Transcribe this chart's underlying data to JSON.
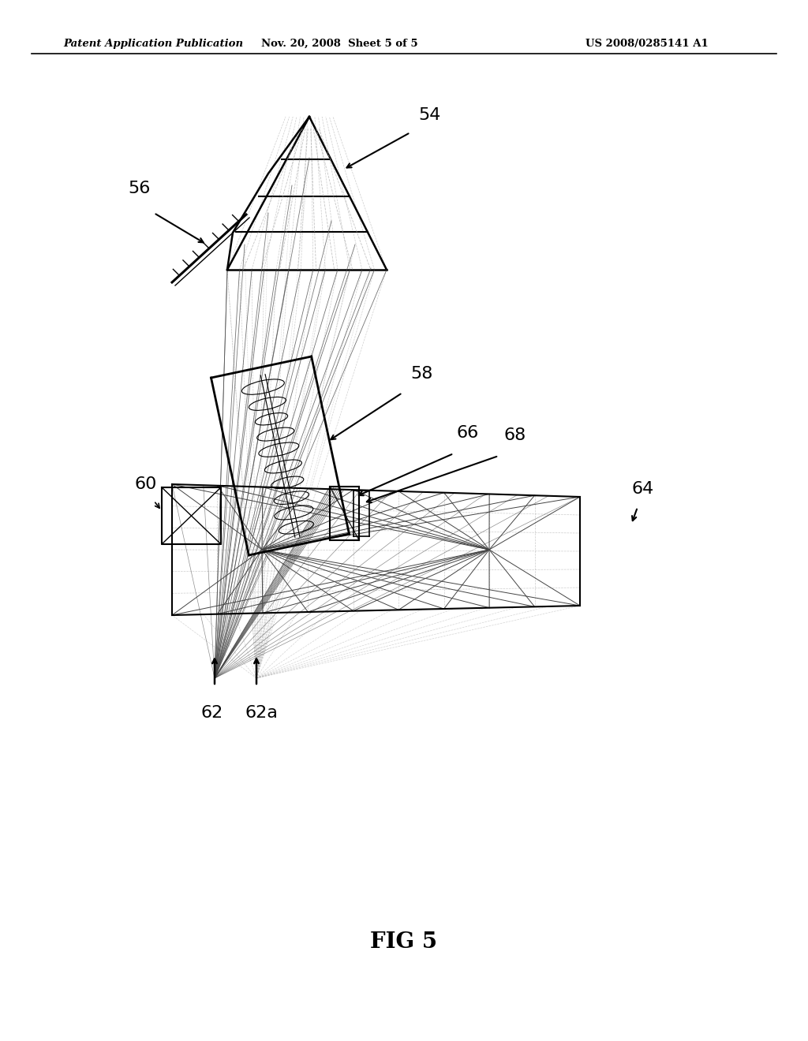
{
  "background_color": "#ffffff",
  "header_left": "Patent Application Publication",
  "header_center": "Nov. 20, 2008  Sheet 5 of 5",
  "header_right": "US 2008/0285141 A1",
  "fig_label": "FIG 5",
  "line_color": "#000000",
  "dashed_color": "#aaaaaa",
  "text_color": "#000000",
  "ray_solid": "#444444",
  "ray_dashed": "#aaaaaa"
}
